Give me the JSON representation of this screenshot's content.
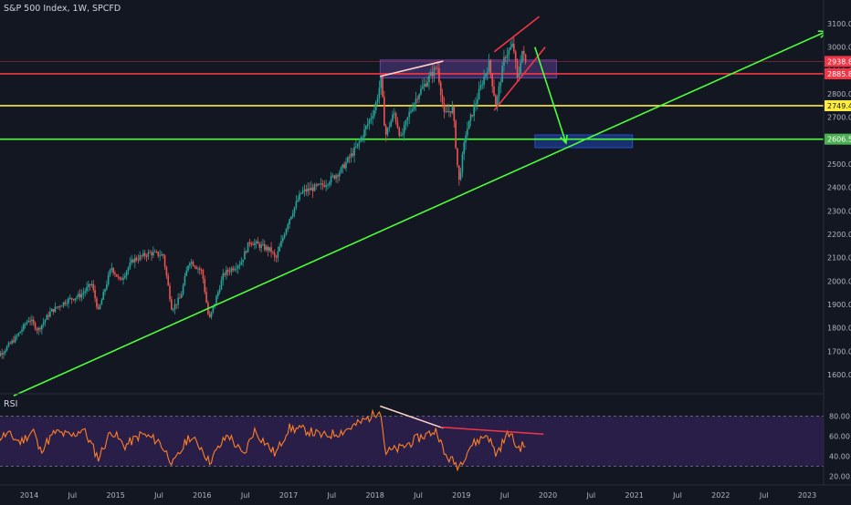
{
  "chart_data": {
    "type": "candlestick",
    "title": "S&P 500 Index, 1W, SPCFD",
    "time_axis": {
      "labels": [
        "2014",
        "Jul",
        "2015",
        "Jul",
        "2016",
        "Jul",
        "2017",
        "Jul",
        "2018",
        "Jul",
        "2019",
        "Jul",
        "2020",
        "Jul",
        "2021",
        "Jul",
        "2022",
        "Jul",
        "2023"
      ],
      "start": 2013.55,
      "end": 2023.25
    },
    "price_axis": {
      "ticks": [
        1600,
        1700,
        1800,
        1900,
        2000,
        2100,
        2200,
        2300,
        2400,
        2500,
        2600,
        2700,
        2800,
        2900,
        3000,
        3100
      ],
      "ylim": [
        1510,
        3135
      ]
    },
    "price_series": [
      {
        "x": 2013.55,
        "y": 1660
      },
      {
        "x": 2013.7,
        "y": 1700
      },
      {
        "x": 2013.85,
        "y": 1760
      },
      {
        "x": 2014.0,
        "y": 1840
      },
      {
        "x": 2014.1,
        "y": 1790
      },
      {
        "x": 2014.25,
        "y": 1870
      },
      {
        "x": 2014.45,
        "y": 1920
      },
      {
        "x": 2014.6,
        "y": 1940
      },
      {
        "x": 2014.72,
        "y": 1990
      },
      {
        "x": 2014.8,
        "y": 1870
      },
      {
        "x": 2014.95,
        "y": 2060
      },
      {
        "x": 2015.05,
        "y": 2000
      },
      {
        "x": 2015.2,
        "y": 2090
      },
      {
        "x": 2015.4,
        "y": 2120
      },
      {
        "x": 2015.55,
        "y": 2110
      },
      {
        "x": 2015.65,
        "y": 1880
      },
      {
        "x": 2015.75,
        "y": 1930
      },
      {
        "x": 2015.85,
        "y": 2090
      },
      {
        "x": 2016.0,
        "y": 2040
      },
      {
        "x": 2016.08,
        "y": 1830
      },
      {
        "x": 2016.25,
        "y": 2030
      },
      {
        "x": 2016.45,
        "y": 2080
      },
      {
        "x": 2016.55,
        "y": 2170
      },
      {
        "x": 2016.8,
        "y": 2130
      },
      {
        "x": 2016.85,
        "y": 2090
      },
      {
        "x": 2017.0,
        "y": 2260
      },
      {
        "x": 2017.15,
        "y": 2380
      },
      {
        "x": 2017.4,
        "y": 2410
      },
      {
        "x": 2017.6,
        "y": 2470
      },
      {
        "x": 2017.8,
        "y": 2580
      },
      {
        "x": 2018.0,
        "y": 2740
      },
      {
        "x": 2018.07,
        "y": 2860
      },
      {
        "x": 2018.12,
        "y": 2620
      },
      {
        "x": 2018.22,
        "y": 2720
      },
      {
        "x": 2018.3,
        "y": 2610
      },
      {
        "x": 2018.4,
        "y": 2720
      },
      {
        "x": 2018.5,
        "y": 2800
      },
      {
        "x": 2018.72,
        "y": 2920
      },
      {
        "x": 2018.8,
        "y": 2710
      },
      {
        "x": 2018.9,
        "y": 2740
      },
      {
        "x": 2018.97,
        "y": 2420
      },
      {
        "x": 2019.05,
        "y": 2630
      },
      {
        "x": 2019.25,
        "y": 2860
      },
      {
        "x": 2019.32,
        "y": 2930
      },
      {
        "x": 2019.4,
        "y": 2750
      },
      {
        "x": 2019.5,
        "y": 2960
      },
      {
        "x": 2019.6,
        "y": 3010
      },
      {
        "x": 2019.65,
        "y": 2850
      },
      {
        "x": 2019.7,
        "y": 2990
      },
      {
        "x": 2019.75,
        "y": 2920
      }
    ],
    "price_labels": [
      {
        "value": 2938.8,
        "text": "2938.8",
        "color": "#f23645",
        "text_color": "#ffffff"
      },
      {
        "value": 2885.8,
        "text": "2885.8",
        "color": "#f23645",
        "text_color": "#ffffff"
      },
      {
        "value": 2749.4,
        "text": "2749.4",
        "color": "#ffeb3b",
        "text_color": "#131722"
      },
      {
        "value": 2606.5,
        "text": "2606.5",
        "color": "#4caf50",
        "text_color": "#ffffff"
      }
    ],
    "horizontal_lines": [
      {
        "y": 2885.8,
        "color": "#f23645"
      },
      {
        "y": 2749.4,
        "color": "#ffeb3b"
      },
      {
        "y": 2606.5,
        "color": "#4cff3a"
      }
    ],
    "trendlines": [
      {
        "name": "support-trendline",
        "color": "#4cff3a",
        "from": {
          "x": 2013.82,
          "y": 1510
        },
        "to": {
          "x": 2023.22,
          "y": 3067
        },
        "arrow": true
      },
      {
        "name": "channel-upper",
        "color": "#f23645",
        "from": {
          "x": 2019.38,
          "y": 2980
        },
        "to": {
          "x": 2019.9,
          "y": 3130
        },
        "arrow": false
      },
      {
        "name": "channel-lower",
        "color": "#f23645",
        "from": {
          "x": 2019.38,
          "y": 2730
        },
        "to": {
          "x": 2019.97,
          "y": 3000
        },
        "arrow": false
      },
      {
        "name": "price-top-line",
        "color": "#ffd3c9",
        "from": {
          "x": 2018.06,
          "y": 2875
        },
        "to": {
          "x": 2018.79,
          "y": 2940
        },
        "arrow": false
      },
      {
        "name": "projection-arrow",
        "color": "#4cff3a",
        "from": {
          "x": 2019.85,
          "y": 3000
        },
        "to": {
          "x": 2020.21,
          "y": 2590
        },
        "arrow": true
      }
    ],
    "zones": [
      {
        "name": "resistance-zone",
        "x0": 2018.06,
        "x1": 2020.1,
        "y0": 2868,
        "y1": 2945,
        "color": "#7b4fc9"
      },
      {
        "name": "target-zone",
        "x0": 2019.85,
        "x1": 2020.98,
        "y0": 2570,
        "y1": 2625,
        "color": "#2962ff"
      }
    ],
    "rsi": {
      "label": "RSI",
      "ylim": [
        15,
        95
      ],
      "ticks": [
        20,
        40,
        60,
        80
      ],
      "band": [
        30,
        80
      ],
      "series": [
        {
          "x": 2013.55,
          "y": 55
        },
        {
          "x": 2013.75,
          "y": 62
        },
        {
          "x": 2013.9,
          "y": 54
        },
        {
          "x": 2014.05,
          "y": 66
        },
        {
          "x": 2014.12,
          "y": 45
        },
        {
          "x": 2014.3,
          "y": 64
        },
        {
          "x": 2014.5,
          "y": 60
        },
        {
          "x": 2014.62,
          "y": 68
        },
        {
          "x": 2014.8,
          "y": 38
        },
        {
          "x": 2014.95,
          "y": 66
        },
        {
          "x": 2015.1,
          "y": 50
        },
        {
          "x": 2015.3,
          "y": 62
        },
        {
          "x": 2015.5,
          "y": 55
        },
        {
          "x": 2015.67,
          "y": 32
        },
        {
          "x": 2015.85,
          "y": 60
        },
        {
          "x": 2016.0,
          "y": 48
        },
        {
          "x": 2016.08,
          "y": 34
        },
        {
          "x": 2016.3,
          "y": 62
        },
        {
          "x": 2016.48,
          "y": 40
        },
        {
          "x": 2016.6,
          "y": 66
        },
        {
          "x": 2016.85,
          "y": 42
        },
        {
          "x": 2017.0,
          "y": 68
        },
        {
          "x": 2017.2,
          "y": 66
        },
        {
          "x": 2017.4,
          "y": 60
        },
        {
          "x": 2017.6,
          "y": 64
        },
        {
          "x": 2017.8,
          "y": 72
        },
        {
          "x": 2018.0,
          "y": 82
        },
        {
          "x": 2018.06,
          "y": 90
        },
        {
          "x": 2018.12,
          "y": 44
        },
        {
          "x": 2018.3,
          "y": 48
        },
        {
          "x": 2018.5,
          "y": 58
        },
        {
          "x": 2018.72,
          "y": 66
        },
        {
          "x": 2018.8,
          "y": 42
        },
        {
          "x": 2018.97,
          "y": 30
        },
        {
          "x": 2019.1,
          "y": 50
        },
        {
          "x": 2019.3,
          "y": 62
        },
        {
          "x": 2019.4,
          "y": 42
        },
        {
          "x": 2019.55,
          "y": 64
        },
        {
          "x": 2019.65,
          "y": 48
        },
        {
          "x": 2019.75,
          "y": 52
        }
      ],
      "trendlines": [
        {
          "color": "#ffd3c9",
          "from": {
            "x": 2018.06,
            "y": 90
          },
          "to": {
            "x": 2018.79,
            "y": 68
          }
        },
        {
          "color": "#f23645",
          "from": {
            "x": 2018.76,
            "y": 69
          },
          "to": {
            "x": 2019.95,
            "y": 62
          }
        }
      ]
    },
    "colors": {
      "background": "#131722",
      "up": "#26a69a",
      "down": "#ef5350",
      "rsi_line": "#ff7f27",
      "rsi_band": "#2b1f4d",
      "axis_text": "#b2b5be"
    }
  }
}
